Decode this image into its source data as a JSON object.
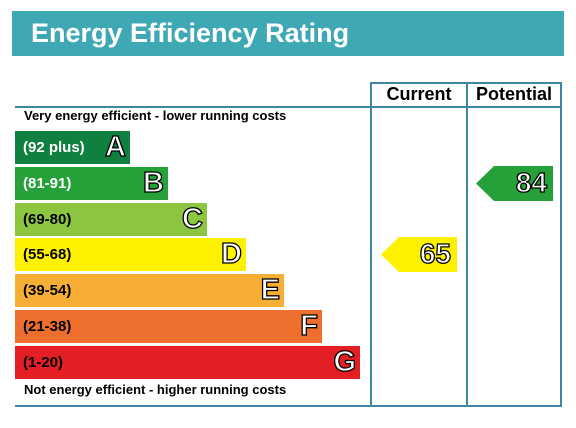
{
  "title": "Energy Efficiency Rating",
  "columns": {
    "current": "Current",
    "potential": "Potential"
  },
  "top_note": "Very energy efficient - lower running costs",
  "bottom_note": "Not energy efficient - higher running costs",
  "colors": {
    "title_bar": "#3ea9b5",
    "frame": "#3d86a8"
  },
  "chart_data": {
    "type": "bar",
    "categories": [
      "A",
      "B",
      "C",
      "D",
      "E",
      "F",
      "G"
    ],
    "bands": [
      {
        "letter": "A",
        "range": "(92 plus)",
        "color": "#108040",
        "text_color": "#ffffff"
      },
      {
        "letter": "B",
        "range": "(81-91)",
        "color": "#26a13a",
        "text_color": "#ffffff"
      },
      {
        "letter": "C",
        "range": "(69-80)",
        "color": "#8cc641",
        "text_color": "#000000"
      },
      {
        "letter": "D",
        "range": "(55-68)",
        "color": "#fff200",
        "text_color": "#000000"
      },
      {
        "letter": "E",
        "range": "(39-54)",
        "color": "#f6ae35",
        "text_color": "#000000"
      },
      {
        "letter": "F",
        "range": "(21-38)",
        "color": "#ee6f2d",
        "text_color": "#000000"
      },
      {
        "letter": "G",
        "range": "(1-20)",
        "color": "#e31e25",
        "text_color": "#000000"
      }
    ],
    "current": {
      "value": "65",
      "band": "D",
      "color": "#fff200"
    },
    "potential": {
      "value": "84",
      "band": "B",
      "color": "#26a13a"
    }
  }
}
